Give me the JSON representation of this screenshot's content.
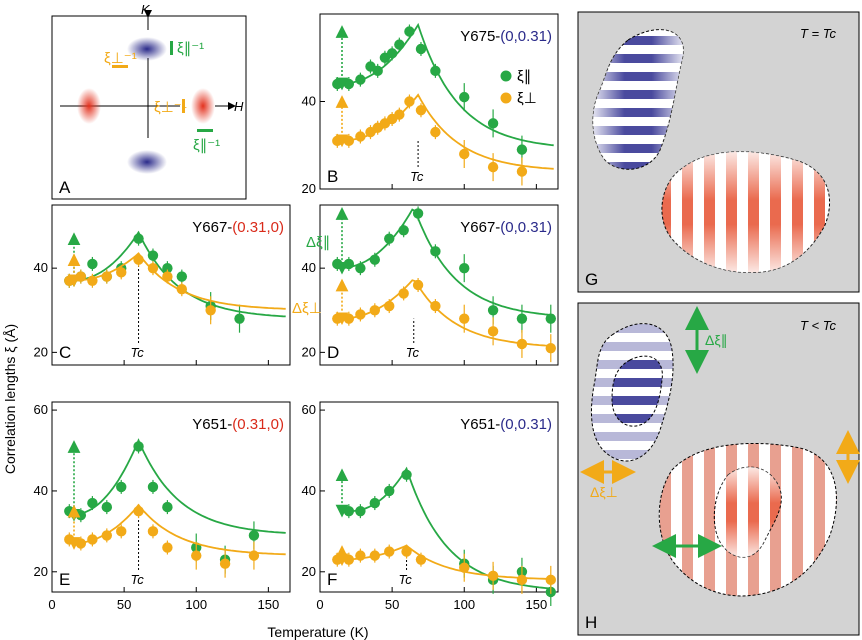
{
  "colors": {
    "green": "#27a845",
    "orange": "#f2aa18",
    "blue": "#2a2a8a",
    "red": "#d92a1a"
  },
  "axes": {
    "xlabel": "Temperature (K)",
    "ylabel": "Correlation lengths ξ (Å)"
  },
  "schematic": {
    "label": "A",
    "k_label": "K",
    "h_label": "H",
    "xi_perp": "ξ⊥⁻¹",
    "xi_par": "ξ∥⁻¹"
  },
  "legend": {
    "par": "ξ∥",
    "perp": "ξ⊥"
  },
  "panel_g": {
    "label": "G",
    "title": "T = Tc"
  },
  "panel_h": {
    "label": "H",
    "title": "T < Tc",
    "dpar": "Δξ∥",
    "dperp": "Δξ⊥"
  },
  "tc_label": "Tc",
  "delta_labels": {
    "par": "Δξ∥",
    "perp": "Δξ⊥"
  },
  "chart_data": [
    {
      "id": "B",
      "type": "scatter",
      "label": "B",
      "title_main": "Y675-",
      "title_q": "(0,0.31)",
      "qcolor": "blue",
      "xlim": [
        0,
        165
      ],
      "ylim": [
        20,
        60
      ],
      "yticks": [
        20,
        40
      ],
      "tc": 68,
      "series": [
        {
          "name": "ξ∥",
          "color": "green",
          "x": [
            12,
            20,
            28,
            35,
            40,
            45,
            50,
            55,
            62,
            70,
            80,
            100,
            120,
            140
          ],
          "y": [
            44,
            44,
            45,
            48,
            47,
            50,
            51,
            53,
            56,
            52,
            47,
            41,
            35,
            29
          ]
        },
        {
          "name": "ξ⊥",
          "color": "orange",
          "x": [
            12,
            20,
            28,
            35,
            40,
            45,
            50,
            55,
            62,
            70,
            80,
            100,
            120,
            140
          ],
          "y": [
            31,
            31,
            32,
            33,
            34,
            35,
            36,
            37,
            40,
            38,
            33,
            28,
            25,
            24
          ]
        }
      ]
    },
    {
      "id": "C",
      "type": "scatter",
      "label": "C",
      "title_main": "Y667-",
      "title_q": "(0.31,0)",
      "qcolor": "red",
      "xlim": [
        0,
        165
      ],
      "ylim": [
        17,
        55
      ],
      "yticks": [
        20,
        40
      ],
      "tc": 60,
      "series": [
        {
          "name": "ξ∥",
          "color": "green",
          "x": [
            12,
            20,
            28,
            38,
            48,
            60,
            70,
            80,
            90,
            110,
            130
          ],
          "y": [
            37,
            38,
            41,
            38,
            40,
            47,
            43,
            40,
            38,
            31,
            28
          ]
        },
        {
          "name": "ξ⊥",
          "color": "orange",
          "x": [
            12,
            20,
            28,
            38,
            48,
            60,
            70,
            80,
            90,
            110
          ],
          "y": [
            37,
            38,
            37,
            38,
            39,
            42,
            40,
            38,
            35,
            30
          ]
        }
      ]
    },
    {
      "id": "D",
      "type": "scatter",
      "label": "D",
      "title_main": "Y667-",
      "title_q": "(0,0.31)",
      "qcolor": "blue",
      "xlim": [
        0,
        165
      ],
      "ylim": [
        17,
        55
      ],
      "yticks": [
        20,
        40
      ],
      "tc": 65,
      "series": [
        {
          "name": "ξ∥",
          "color": "green",
          "x": [
            12,
            20,
            28,
            38,
            48,
            58,
            68,
            80,
            100,
            120,
            140,
            160
          ],
          "y": [
            41,
            41,
            40,
            42,
            47,
            49,
            53,
            44,
            40,
            30,
            28,
            28
          ]
        },
        {
          "name": "ξ⊥",
          "color": "orange",
          "x": [
            12,
            20,
            28,
            38,
            48,
            58,
            68,
            80,
            100,
            120,
            140,
            160
          ],
          "y": [
            28,
            28,
            29,
            30,
            31,
            34,
            36,
            31,
            28,
            25,
            22,
            21
          ]
        }
      ]
    },
    {
      "id": "E",
      "type": "scatter",
      "label": "E",
      "title_main": "Y651-",
      "title_q": "(0.31,0)",
      "qcolor": "red",
      "xlim": [
        0,
        165
      ],
      "ylim": [
        15,
        62
      ],
      "yticks": [
        20,
        40,
        60
      ],
      "tc": 60,
      "series": [
        {
          "name": "ξ∥",
          "color": "green",
          "x": [
            12,
            20,
            28,
            38,
            48,
            60,
            70,
            80,
            100,
            120,
            140
          ],
          "y": [
            35,
            34,
            37,
            36,
            41,
            51,
            41,
            36,
            26,
            23,
            29
          ]
        },
        {
          "name": "ξ⊥",
          "color": "orange",
          "x": [
            12,
            20,
            28,
            38,
            48,
            60,
            70,
            80,
            100,
            120,
            140
          ],
          "y": [
            28,
            27,
            28,
            29,
            30,
            35,
            30,
            26,
            24,
            22,
            24
          ]
        }
      ]
    },
    {
      "id": "F",
      "type": "scatter",
      "label": "F",
      "title_main": "Y651-",
      "title_q": "(0,0.31)",
      "qcolor": "blue",
      "xlim": [
        0,
        165
      ],
      "ylim": [
        15,
        62
      ],
      "yticks": [
        20,
        40,
        60
      ],
      "tc": 60,
      "series": [
        {
          "name": "ξ∥",
          "color": "green",
          "x": [
            20,
            28,
            38,
            48,
            60,
            100,
            120,
            140,
            160
          ],
          "y": [
            35,
            35,
            37,
            40,
            44,
            22,
            18,
            20,
            15
          ]
        },
        {
          "name": "ξ⊥",
          "color": "orange",
          "x": [
            12,
            20,
            28,
            38,
            48,
            60,
            70,
            100,
            120,
            140,
            160
          ],
          "y": [
            23,
            23,
            24,
            24,
            25,
            25,
            23,
            21,
            19,
            18,
            18
          ]
        }
      ]
    }
  ]
}
